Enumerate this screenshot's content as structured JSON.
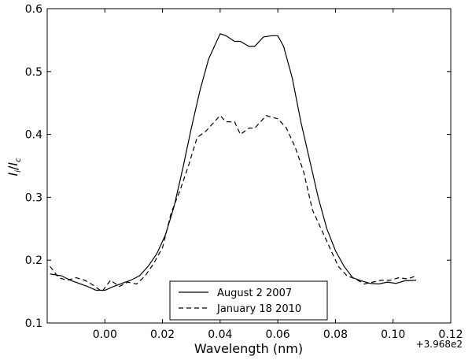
{
  "chart_data": {
    "type": "line",
    "xlabel": "Wavelength (nm)",
    "ylabel_main": "I",
    "ylabel_sub1": "i",
    "ylabel_slash": "/",
    "ylabel_sub2": "c",
    "x_offset_label": "+3.968e2",
    "xlim": [
      -0.02,
      0.12
    ],
    "ylim": [
      0.1,
      0.6
    ],
    "xticks": [
      0.0,
      0.02,
      0.04,
      0.06,
      0.08,
      0.1,
      0.12
    ],
    "xtick_labels": [
      "0.00",
      "0.02",
      "0.04",
      "0.06",
      "0.08",
      "0.10",
      "0.12"
    ],
    "yticks": [
      0.1,
      0.2,
      0.3,
      0.4,
      0.5,
      0.6
    ],
    "ytick_labels": [
      "0.1",
      "0.2",
      "0.3",
      "0.4",
      "0.5",
      "0.6"
    ],
    "grid": false,
    "legend_position": "bottom-center",
    "series": [
      {
        "name": "August 2 2007",
        "style": "solid",
        "color": "#000000",
        "x": [
          -0.019,
          -0.015,
          -0.012,
          -0.009,
          -0.006,
          -0.003,
          0.0,
          0.003,
          0.006,
          0.009,
          0.012,
          0.015,
          0.018,
          0.021,
          0.024,
          0.027,
          0.03,
          0.033,
          0.036,
          0.04,
          0.042,
          0.045,
          0.047,
          0.05,
          0.052,
          0.055,
          0.058,
          0.06,
          0.062,
          0.065,
          0.068,
          0.071,
          0.074,
          0.077,
          0.08,
          0.083,
          0.086,
          0.089,
          0.092,
          0.095,
          0.098,
          0.101,
          0.104,
          0.108
        ],
        "y": [
          0.178,
          0.175,
          0.168,
          0.163,
          0.158,
          0.152,
          0.152,
          0.158,
          0.163,
          0.168,
          0.175,
          0.19,
          0.21,
          0.24,
          0.285,
          0.345,
          0.41,
          0.47,
          0.52,
          0.56,
          0.557,
          0.548,
          0.548,
          0.54,
          0.54,
          0.555,
          0.557,
          0.557,
          0.54,
          0.49,
          0.42,
          0.36,
          0.3,
          0.25,
          0.215,
          0.19,
          0.172,
          0.167,
          0.163,
          0.162,
          0.165,
          0.163,
          0.167,
          0.168
        ]
      },
      {
        "name": "January 18 2010",
        "style": "dashed",
        "color": "#000000",
        "x": [
          -0.019,
          -0.016,
          -0.013,
          -0.01,
          -0.007,
          -0.004,
          -0.001,
          0.002,
          0.005,
          0.008,
          0.011,
          0.014,
          0.017,
          0.02,
          0.023,
          0.026,
          0.029,
          0.032,
          0.035,
          0.038,
          0.04,
          0.042,
          0.045,
          0.047,
          0.05,
          0.052,
          0.054,
          0.056,
          0.058,
          0.06,
          0.063,
          0.066,
          0.069,
          0.072,
          0.075,
          0.078,
          0.081,
          0.084,
          0.087,
          0.09,
          0.093,
          0.096,
          0.099,
          0.102,
          0.105,
          0.108
        ],
        "y": [
          0.19,
          0.172,
          0.168,
          0.172,
          0.168,
          0.16,
          0.15,
          0.168,
          0.158,
          0.165,
          0.162,
          0.175,
          0.195,
          0.22,
          0.275,
          0.31,
          0.35,
          0.395,
          0.405,
          0.42,
          0.43,
          0.42,
          0.42,
          0.4,
          0.41,
          0.41,
          0.42,
          0.43,
          0.427,
          0.425,
          0.41,
          0.38,
          0.34,
          0.28,
          0.25,
          0.22,
          0.19,
          0.175,
          0.17,
          0.162,
          0.165,
          0.168,
          0.168,
          0.172,
          0.17,
          0.175
        ]
      }
    ]
  }
}
